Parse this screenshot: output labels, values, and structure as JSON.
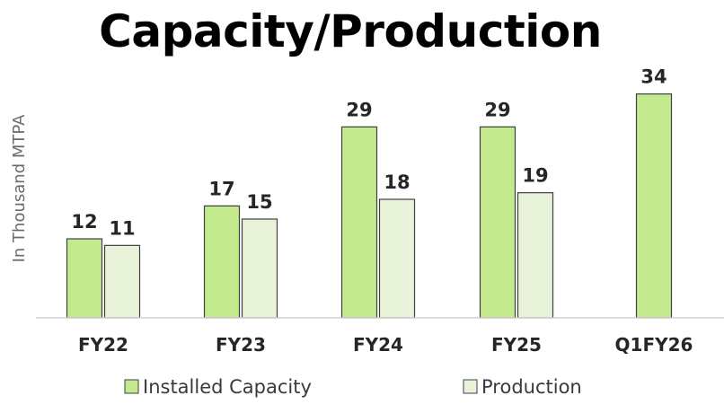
{
  "chart_data": {
    "type": "bar",
    "title": "Capacity/Production",
    "xlabel": "",
    "ylabel": "In Thousand MTPA",
    "categories": [
      "FY22",
      "FY23",
      "FY24",
      "FY25",
      "Q1FY26"
    ],
    "series": [
      {
        "name": "Installed Capacity",
        "values": [
          12,
          17,
          29,
          29,
          34
        ],
        "color": "#c3ea8f"
      },
      {
        "name": "Production",
        "values": [
          11,
          15,
          18,
          19,
          null
        ],
        "color": "#e8f3da"
      }
    ],
    "ylim": [
      0,
      36
    ],
    "grid": false,
    "legend_position": "bottom"
  }
}
